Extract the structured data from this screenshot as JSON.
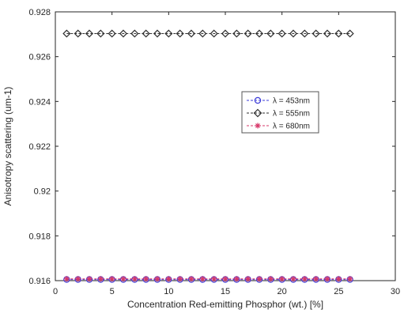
{
  "chart_data": {
    "type": "scatter",
    "title": "",
    "xlabel": "Concentration Red-emitting Phosphor (wt.) [%]",
    "ylabel": "Anisotropy scattering (um-1)",
    "xlim": [
      0,
      30
    ],
    "ylim": [
      0.916,
      0.928
    ],
    "xticks": [
      0,
      5,
      10,
      15,
      20,
      25,
      30
    ],
    "yticks": [
      0.916,
      0.918,
      0.92,
      0.922,
      0.924,
      0.926,
      0.928
    ],
    "xtick_labels": [
      "0",
      "5",
      "10",
      "15",
      "20",
      "25",
      "30"
    ],
    "ytick_labels": [
      "0.916",
      "0.918",
      "0.92",
      "0.922",
      "0.924",
      "0.926",
      "0.928"
    ],
    "grid": false,
    "legend_position": "right",
    "x": [
      1,
      2,
      3,
      4,
      5,
      6,
      7,
      8,
      9,
      10,
      11,
      12,
      13,
      14,
      15,
      16,
      17,
      18,
      19,
      20,
      21,
      22,
      23,
      24,
      25,
      26
    ],
    "series": [
      {
        "name": "λ = 453nm",
        "color": "#3b3bd8",
        "marker": "circle",
        "values": [
          0.91605,
          0.91605,
          0.91605,
          0.91605,
          0.91605,
          0.91605,
          0.91605,
          0.91605,
          0.91605,
          0.91605,
          0.91605,
          0.91605,
          0.91605,
          0.91605,
          0.91605,
          0.91605,
          0.91605,
          0.91605,
          0.91605,
          0.91605,
          0.91605,
          0.91605,
          0.91605,
          0.91605,
          0.91605,
          0.91605
        ]
      },
      {
        "name": "λ = 555nm",
        "color": "#2f2f2f",
        "marker": "diamond",
        "values": [
          0.92703,
          0.92703,
          0.92703,
          0.92703,
          0.92703,
          0.92703,
          0.92703,
          0.92703,
          0.92703,
          0.92703,
          0.92703,
          0.92703,
          0.92703,
          0.92703,
          0.92703,
          0.92703,
          0.92703,
          0.92703,
          0.92703,
          0.92703,
          0.92703,
          0.92703,
          0.92703,
          0.92703,
          0.92703,
          0.92703
        ]
      },
      {
        "name": "λ = 680nm",
        "color": "#d7386a",
        "marker": "asterisk",
        "values": [
          0.91608,
          0.91608,
          0.91608,
          0.91608,
          0.91608,
          0.91608,
          0.91608,
          0.91608,
          0.91608,
          0.91608,
          0.91608,
          0.91608,
          0.91608,
          0.91608,
          0.91608,
          0.91608,
          0.91608,
          0.91608,
          0.91608,
          0.91608,
          0.91608,
          0.91608,
          0.91608,
          0.91608,
          0.91608,
          0.91608
        ]
      }
    ]
  }
}
